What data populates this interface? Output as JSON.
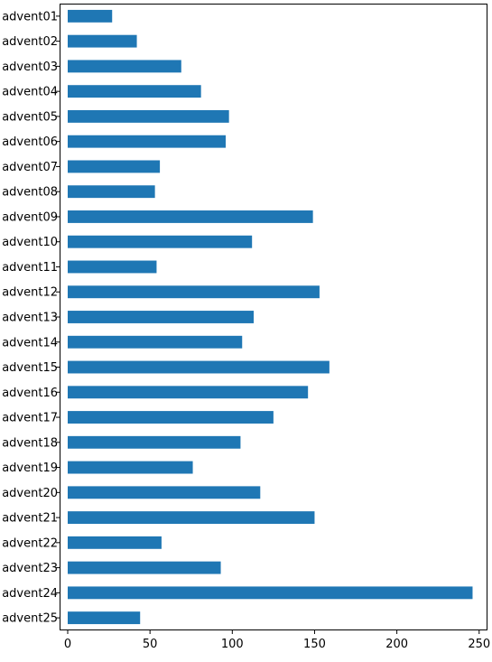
{
  "chart_data": {
    "type": "bar",
    "orientation": "horizontal",
    "categories": [
      "advent01",
      "advent02",
      "advent03",
      "advent04",
      "advent05",
      "advent06",
      "advent07",
      "advent08",
      "advent09",
      "advent10",
      "advent11",
      "advent12",
      "advent13",
      "advent14",
      "advent15",
      "advent16",
      "advent17",
      "advent18",
      "advent19",
      "advent20",
      "advent21",
      "advent22",
      "advent23",
      "advent24",
      "advent25"
    ],
    "values": [
      27,
      42,
      69,
      81,
      98,
      96,
      56,
      53,
      149,
      112,
      54,
      153,
      113,
      106,
      159,
      146,
      125,
      105,
      76,
      117,
      150,
      57,
      93,
      246,
      44
    ],
    "xlim": [
      0,
      260
    ],
    "xticks": [
      0,
      50,
      100,
      150,
      200,
      250
    ],
    "title": "",
    "xlabel": "",
    "ylabel": "",
    "grid": false,
    "bar_color": "#1f77b4"
  }
}
